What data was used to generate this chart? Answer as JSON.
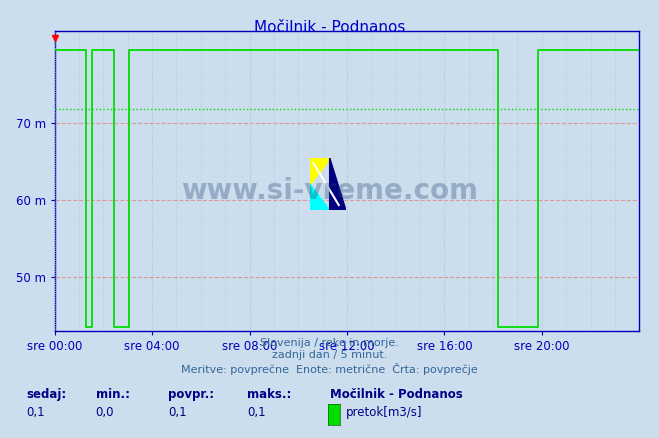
{
  "title": "Močilnik - Podnanos",
  "bg_color": "#ccdded",
  "plot_bg_color": "#ccdded",
  "line_color": "#00dd00",
  "axis_color": "#0000bb",
  "grid_color_red": "#dd9999",
  "grid_color_gray": "#aabbcc",
  "title_color": "#0000cc",
  "ytick_labels": [
    "50 m",
    "60 m",
    "70 m"
  ],
  "ytick_values": [
    50,
    60,
    70
  ],
  "ymin": 43,
  "ymax": 82,
  "xtick_labels": [
    "sre 00:00",
    "sre 04:00",
    "sre 08:00",
    "sre 12:00",
    "sre 16:00",
    "sre 20:00"
  ],
  "xtick_values": [
    0,
    4,
    8,
    12,
    16,
    20
  ],
  "xmin": 0,
  "xmax": 24,
  "avg_line_value": 71.8,
  "footer_line1": "Slovenija / reke in morje.",
  "footer_line2": "zadnji dan / 5 minut.",
  "footer_line3": "Meritve: povprečne  Enote: metrične  Črta: povprečje",
  "legend_title": "Močilnik - Podnanos",
  "legend_label": "pretok[m3/s]",
  "stat_labels": [
    "sedaj:",
    "min.:",
    "povpr.:",
    "maks.:"
  ],
  "stat_values": [
    "0,1",
    "0,0",
    "0,1",
    "0,1"
  ],
  "watermark": "www.si-vreme.com",
  "high_val": 79.5,
  "low_val": 43.5,
  "x_segments": [
    [
      0,
      1.28,
      1.28,
      1.55,
      1.55,
      2.45,
      2.45,
      3.05,
      3.05,
      18.2,
      18.2,
      19.85,
      19.85,
      24.0
    ],
    [
      79.5,
      79.5,
      43.5,
      43.5,
      79.5,
      79.5,
      43.5,
      43.5,
      79.5,
      79.5,
      43.5,
      43.5,
      79.5,
      79.5
    ]
  ]
}
